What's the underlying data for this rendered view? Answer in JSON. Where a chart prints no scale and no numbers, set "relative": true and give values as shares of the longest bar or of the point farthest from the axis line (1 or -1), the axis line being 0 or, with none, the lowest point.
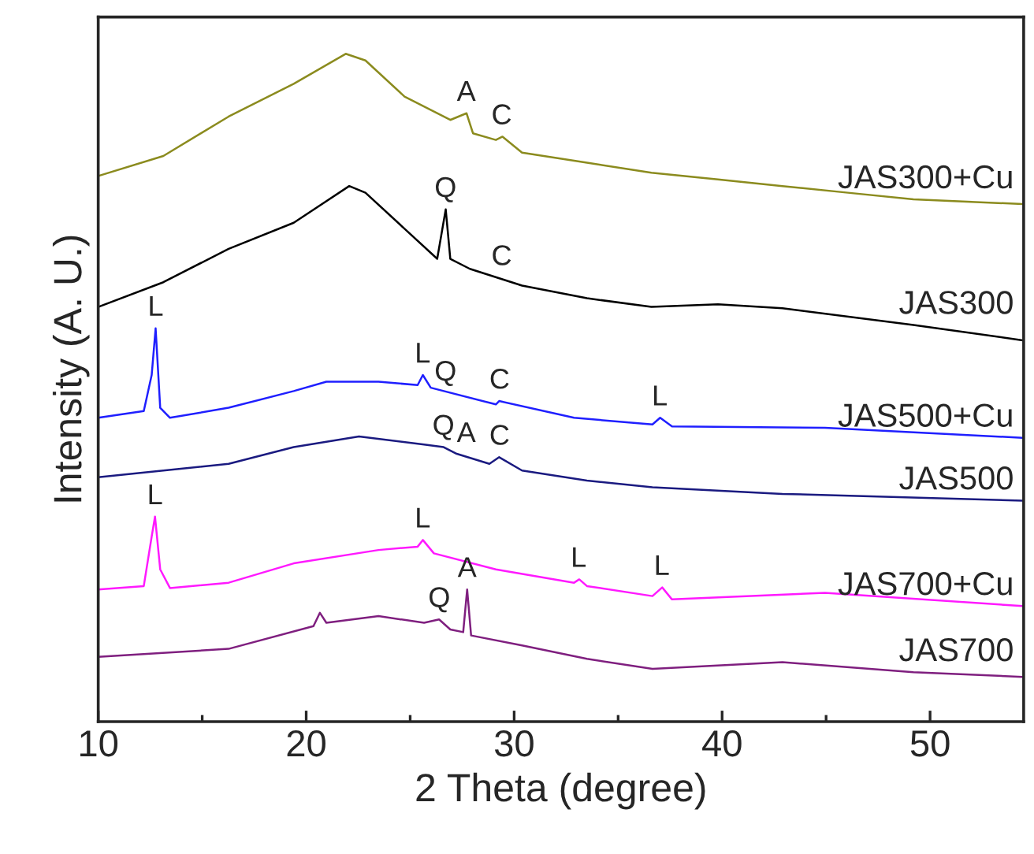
{
  "chart_data": {
    "type": "line",
    "relative": true,
    "xlabel": "2 Theta (degree)",
    "ylabel": "Intensity (A. U.)",
    "xlim": [
      10,
      54.5
    ],
    "xticks": [
      10,
      {
        "value": 15,
        "label": null
      },
      20,
      {
        "value": 25,
        "label": null
      },
      30,
      {
        "value": 35,
        "label": null
      },
      40,
      {
        "value": 45,
        "label": null
      },
      50
    ],
    "grid": false,
    "legend": false,
    "marker": "none",
    "line_style": "solid",
    "series": [
      {
        "name": "JAS300+Cu",
        "color": "#8b8b1e",
        "x": [
          10,
          13.13,
          16.27,
          19.4,
          21.9,
          22.85,
          24.73,
          26.93,
          27.71,
          28.02,
          29.12,
          29.44,
          30.38,
          33.5,
          36.6,
          39.8,
          42.9,
          46.05,
          49.2,
          54.45
        ],
        "values": [
          0.817,
          0.847,
          0.906,
          0.955,
          1.0,
          0.99,
          0.936,
          0.901,
          0.911,
          0.881,
          0.871,
          0.876,
          0.852,
          0.837,
          0.822,
          0.812,
          0.802,
          0.792,
          0.782,
          0.775
        ]
      },
      {
        "name": "JAS300",
        "color": "#000000",
        "x": [
          10,
          13.13,
          16.27,
          19.4,
          22.07,
          22.85,
          24.73,
          26.3,
          26.71,
          26.93,
          27.87,
          30.38,
          33.5,
          36.6,
          39.8,
          42.9,
          49.2,
          54.45
        ],
        "values": [
          0.621,
          0.658,
          0.708,
          0.747,
          0.802,
          0.792,
          0.738,
          0.693,
          0.767,
          0.693,
          0.678,
          0.653,
          0.634,
          0.621,
          0.625,
          0.619,
          0.594,
          0.571
        ]
      },
      {
        "name": "JAS500+Cu",
        "color": "#1f1fff",
        "x": [
          10,
          12.19,
          12.57,
          12.76,
          12.98,
          13.45,
          16.27,
          19.4,
          20.97,
          23.48,
          25.36,
          25.61,
          25.99,
          29.12,
          29.28,
          32.88,
          36.65,
          37.02,
          37.59,
          44.95,
          54.45
        ],
        "values": [
          0.455,
          0.465,
          0.519,
          0.589,
          0.47,
          0.455,
          0.47,
          0.495,
          0.509,
          0.509,
          0.504,
          0.519,
          0.5,
          0.475,
          0.48,
          0.455,
          0.445,
          0.455,
          0.442,
          0.44,
          0.425
        ]
      },
      {
        "name": "JAS500",
        "color": "#1a1a80",
        "x": [
          10,
          16.27,
          19.4,
          22.54,
          25.67,
          26.61,
          27.24,
          28.81,
          29.28,
          30.38,
          33.5,
          36.65,
          42.9,
          54.45
        ],
        "values": [
          0.366,
          0.386,
          0.411,
          0.427,
          0.415,
          0.411,
          0.401,
          0.386,
          0.396,
          0.376,
          0.361,
          0.351,
          0.341,
          0.331
        ]
      },
      {
        "name": "JAS700+Cu",
        "color": "#ff19ff",
        "x": [
          10,
          12.19,
          12.57,
          12.73,
          12.98,
          13.45,
          16.27,
          19.4,
          23.48,
          25.36,
          25.61,
          26.14,
          29.12,
          32.88,
          33.13,
          33.5,
          36.65,
          37.12,
          37.59,
          44.95,
          54.45
        ],
        "values": [
          0.198,
          0.203,
          0.277,
          0.307,
          0.228,
          0.2,
          0.208,
          0.237,
          0.257,
          0.262,
          0.272,
          0.252,
          0.228,
          0.208,
          0.213,
          0.203,
          0.188,
          0.201,
          0.183,
          0.193,
          0.173
        ]
      },
      {
        "name": "JAS700",
        "color": "#7f1f7f",
        "x": [
          10,
          16.27,
          20.35,
          20.66,
          20.97,
          23.48,
          25.67,
          26.39,
          26.93,
          27.55,
          27.74,
          27.93,
          30.38,
          33.5,
          36.65,
          42.9,
          49.2,
          54.45
        ],
        "values": [
          0.097,
          0.109,
          0.143,
          0.163,
          0.148,
          0.158,
          0.148,
          0.153,
          0.138,
          0.134,
          0.198,
          0.129,
          0.114,
          0.094,
          0.079,
          0.089,
          0.074,
          0.067
        ]
      }
    ],
    "annotations": [
      {
        "text": "A",
        "x": 27.7,
        "y": 0.911
      },
      {
        "text": "C",
        "x": 29.4,
        "y": 0.876
      },
      {
        "text": "Q",
        "x": 26.7,
        "y": 0.767
      },
      {
        "text": "C",
        "x": 29.4,
        "y": 0.665
      },
      {
        "text": "L",
        "x": 12.76,
        "y": 0.589
      },
      {
        "text": "L",
        "x": 25.6,
        "y": 0.519
      },
      {
        "text": "Q",
        "x": 26.7,
        "y": 0.492
      },
      {
        "text": "C",
        "x": 29.3,
        "y": 0.48
      },
      {
        "text": "L",
        "x": 37.0,
        "y": 0.455
      },
      {
        "text": "Q",
        "x": 26.6,
        "y": 0.411
      },
      {
        "text": "A",
        "x": 27.7,
        "y": 0.4
      },
      {
        "text": "C",
        "x": 29.3,
        "y": 0.396
      },
      {
        "text": "L",
        "x": 12.73,
        "y": 0.307
      },
      {
        "text": "L",
        "x": 25.6,
        "y": 0.272
      },
      {
        "text": "L",
        "x": 33.1,
        "y": 0.213
      },
      {
        "text": "L",
        "x": 37.1,
        "y": 0.201
      },
      {
        "text": "Q",
        "x": 26.4,
        "y": 0.153
      },
      {
        "text": "A",
        "x": 27.74,
        "y": 0.198
      }
    ]
  }
}
